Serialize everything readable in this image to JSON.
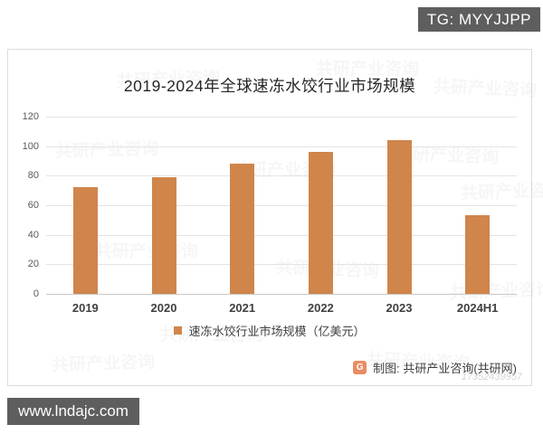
{
  "page": {
    "tg_badge": "TG: MYYJJPP",
    "site_badge": "www.lndajc.com"
  },
  "chart": {
    "title": "2019-2024年全球速冻水饺行业市场规模",
    "legend_label": "速冻水饺行业市场规模（亿美元）",
    "credit_text": "制图: 共研产业咨询(共研网)",
    "credit_logo_letter": "G",
    "watermark_text": "共研产业咨询",
    "watermark_number": "17352439957",
    "bar_color": "#d0854b",
    "badge_color": "#5e5e5e"
  },
  "chart_data": {
    "type": "bar",
    "categories": [
      "2019",
      "2020",
      "2021",
      "2022",
      "2023",
      "2024H1"
    ],
    "values": [
      72,
      79,
      88,
      96,
      104,
      53
    ],
    "title": "2019-2024年全球速冻水饺行业市场规模",
    "xlabel": "",
    "ylabel": "",
    "ylim": [
      0,
      120
    ],
    "ytick_interval": 20,
    "yticks": [
      0,
      20,
      40,
      60,
      80,
      100,
      120
    ],
    "legend": [
      "速冻水饺行业市场规模（亿美元）"
    ],
    "legend_position": "bottom",
    "grid": true,
    "bar_color": "#d0854b"
  }
}
